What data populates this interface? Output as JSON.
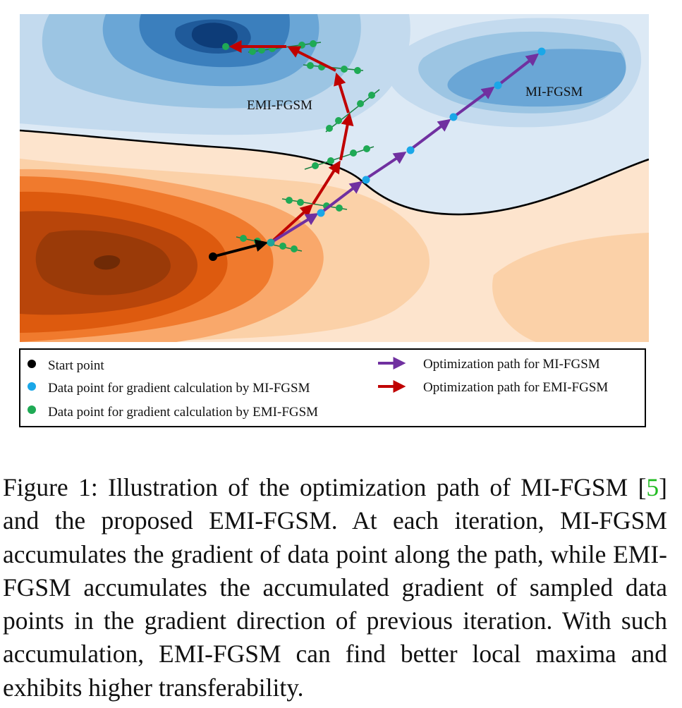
{
  "figure": {
    "labels": {
      "emi": "EMI-FGSM",
      "mi": "MI-FGSM"
    },
    "legend": {
      "start_point": "Start point",
      "mi_data_point": "Data point for gradient calculation by MI-FGSM",
      "emi_data_point": "Data point for gradient calculation by EMI-FGSM",
      "mi_path": "Optimization path for MI-FGSM",
      "emi_path": "Optimization path for EMI-FGSM"
    },
    "colors": {
      "mi_path": "#7030a0",
      "emi_path": "#c00000",
      "mi_point": "#1aa7e8",
      "emi_point": "#1faa55",
      "start_point": "#000000"
    }
  },
  "caption": {
    "prefix": "Figure 1:  Illustration of the optimization path of MI-FGSM [",
    "citation": "5",
    "suffix": "] and the proposed EMI-FGSM. At each iteration, MI-FGSM accumulates the gradient of data point along the path, while EMI-FGSM accumulates the accumulated gradient of sampled data points in the gradient direction of previous iteration.  With such accumulation, EMI-FGSM can find better local maxima and exhibits higher transferability."
  }
}
